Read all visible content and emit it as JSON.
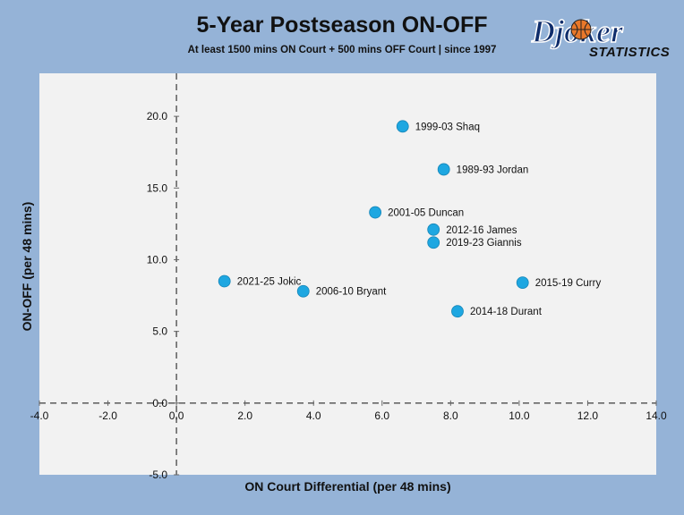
{
  "header": {
    "title": "5-Year Postseason ON-OFF",
    "subtitle": "At least 1500 mins ON Court + 500 mins OFF Court | since 1997"
  },
  "logo": {
    "main_text": "Djoker",
    "sub_text": "STATISTICS"
  },
  "chart_data": {
    "type": "scatter",
    "title": "5-Year Postseason ON-OFF",
    "subtitle": "At least 1500 mins ON Court + 500 mins OFF Court | since 1997",
    "xlabel": "ON Court Differential (per 48 mins)",
    "ylabel": "ON-OFF (per 48 mins)",
    "xlim": [
      -4.0,
      14.0
    ],
    "ylim": [
      -5.0,
      23.0
    ],
    "xticks": [
      "-4.0",
      "-2.0",
      "0.0",
      "2.0",
      "4.0",
      "6.0",
      "8.0",
      "10.0",
      "12.0",
      "14.0"
    ],
    "xtick_values": [
      -4,
      -2,
      0,
      2,
      4,
      6,
      8,
      10,
      12,
      14
    ],
    "yticks": [
      "-5.0",
      "0.0",
      "5.0",
      "10.0",
      "15.0",
      "20.0"
    ],
    "ytick_values": [
      -5,
      0,
      5,
      10,
      15,
      20
    ],
    "grid": false,
    "marker_color": "#1ea7e1",
    "points": [
      {
        "label": "1999-03 Shaq",
        "x": 6.6,
        "y": 19.3
      },
      {
        "label": "1989-93 Jordan",
        "x": 7.8,
        "y": 16.3
      },
      {
        "label": "2001-05 Duncan",
        "x": 5.8,
        "y": 13.3
      },
      {
        "label": "2012-16 James",
        "x": 7.5,
        "y": 12.1
      },
      {
        "label": "2019-23 Giannis",
        "x": 7.5,
        "y": 11.2
      },
      {
        "label": "2021-25 Jokic",
        "x": 1.4,
        "y": 8.5
      },
      {
        "label": "2006-10 Bryant",
        "x": 3.7,
        "y": 7.8
      },
      {
        "label": "2015-19 Curry",
        "x": 10.1,
        "y": 8.4
      },
      {
        "label": "2014-18 Durant",
        "x": 8.2,
        "y": 6.4
      }
    ]
  }
}
